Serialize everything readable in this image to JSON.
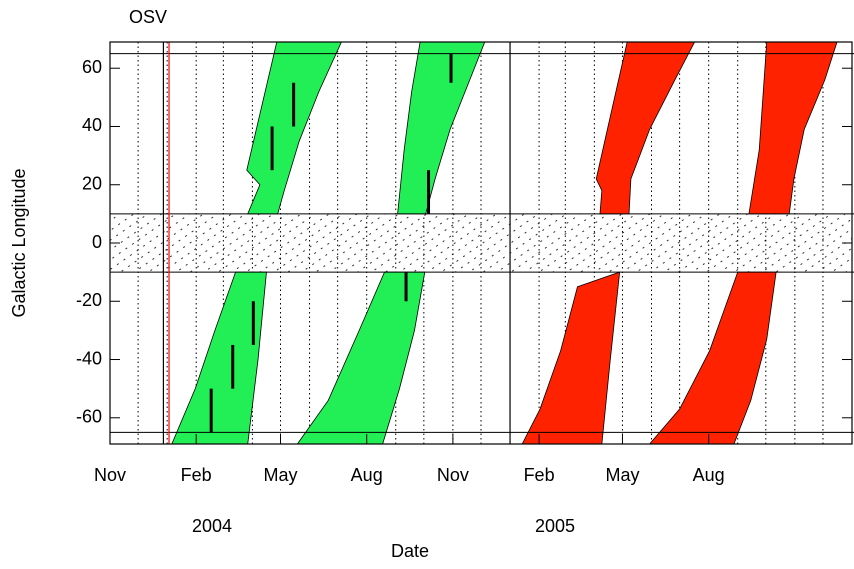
{
  "chart_data": {
    "type": "polygon",
    "title": "OSV",
    "y_label": "Galactic Longitude",
    "x_label": "Date",
    "year_labels": [
      "2004",
      "2005"
    ],
    "xlim": [
      "2003-11-01",
      "2006-01-01"
    ],
    "xticks": [
      {
        "value": "2003-11-01",
        "label": "Nov"
      },
      {
        "value": "2004-02-01",
        "label": "Feb"
      },
      {
        "value": "2004-05-01",
        "label": "May"
      },
      {
        "value": "2004-08-01",
        "label": "Aug"
      },
      {
        "value": "2004-11-01",
        "label": "Nov"
      },
      {
        "value": "2005-02-01",
        "label": "Feb"
      },
      {
        "value": "2005-05-01",
        "label": "May"
      },
      {
        "value": "2005-08-01",
        "label": "Aug"
      }
    ],
    "xgrid": [
      "2003-12-01",
      "2004-01-01",
      "2004-02-01",
      "2004-03-01",
      "2004-04-01",
      "2004-05-01",
      "2004-06-01",
      "2004-07-01",
      "2004-08-01",
      "2004-09-01",
      "2004-10-01",
      "2004-11-01",
      "2004-12-01",
      "2005-02-01",
      "2005-03-01",
      "2005-04-01",
      "2005-05-01",
      "2005-06-01",
      "2005-07-01",
      "2005-08-01",
      "2005-09-01",
      "2005-10-01",
      "2005-11-01",
      "2005-12-01"
    ],
    "ylim": [
      -69,
      69
    ],
    "yticks": [
      -60,
      -40,
      -20,
      0,
      20,
      40,
      60
    ],
    "hlines": [
      65,
      -65
    ],
    "band": [
      -10,
      10
    ],
    "vlines": [
      {
        "x": "2003-12-28",
        "color": "#000000"
      },
      {
        "x": "2004-01-03",
        "color": "#ff0000"
      },
      {
        "x": "2005-01-01",
        "color": "#000000"
      }
    ],
    "polygons": [
      {
        "color": "#22ee55",
        "x": [
          "2004-04-27",
          "2004-07-05",
          "2004-06-11",
          "2004-05-21",
          "2004-05-05",
          "2004-04-28",
          "2004-03-27",
          "2004-04-09",
          "2004-03-26"
        ],
        "values": [
          69,
          69,
          52,
          35,
          18,
          10,
          10,
          20,
          25
        ]
      },
      {
        "color": "#22ee55",
        "x": [
          "2004-09-27",
          "2004-12-05",
          "2004-11-19",
          "2004-10-29",
          "2004-10-13",
          "2004-10-03",
          "2004-09-03",
          "2004-09-10",
          "2004-09-18"
        ],
        "values": [
          69,
          69,
          56,
          39,
          22,
          10,
          10,
          32,
          52
        ]
      },
      {
        "color": "#ff2200",
        "x": [
          "2005-05-06",
          "2005-07-17",
          "2005-06-26",
          "2005-05-30",
          "2005-05-10",
          "2005-05-08",
          "2005-04-07",
          "2005-04-09",
          "2005-04-03",
          "2005-04-17"
        ],
        "values": [
          69,
          69,
          56,
          39,
          22,
          10,
          10,
          18,
          22,
          42
        ]
      },
      {
        "color": "#ff2200",
        "x": [
          "2005-10-02",
          "2005-12-16",
          "2005-12-03",
          "2005-11-11",
          "2005-10-31",
          "2005-10-26",
          "2005-09-13",
          "2005-09-24"
        ],
        "values": [
          69,
          69,
          56,
          39,
          22,
          10,
          10,
          32
        ]
      },
      {
        "color": "#22ee55",
        "x": [
          "2004-03-14",
          "2004-04-16",
          "2004-04-07",
          "2004-03-27",
          "2004-01-06",
          "2004-01-31",
          "2004-02-21"
        ],
        "values": [
          -10,
          -10,
          -40,
          -69,
          -69,
          -50,
          -30
        ]
      },
      {
        "color": "#22ee55",
        "x": [
          "2004-08-20",
          "2004-10-02",
          "2004-09-21",
          "2004-09-05",
          "2004-08-18",
          "2004-05-19",
          "2004-06-21",
          "2004-07-24"
        ],
        "values": [
          -10,
          -10,
          -30,
          -50,
          -69,
          -69,
          -54,
          -30
        ]
      },
      {
        "color": "#ff2200",
        "x": [
          "2005-03-14",
          "2005-04-28",
          "2005-04-18",
          "2005-04-09",
          "2005-01-14",
          "2005-02-02",
          "2005-02-24"
        ],
        "values": [
          -15,
          -10,
          -40,
          -69,
          -69,
          -57,
          -37
        ]
      },
      {
        "color": "#ff2200",
        "x": [
          "2005-09-01",
          "2005-10-12",
          "2005-10-02",
          "2005-09-15",
          "2005-08-28",
          "2005-05-30",
          "2005-07-01",
          "2005-08-02"
        ],
        "values": [
          -10,
          -10,
          -33,
          -54,
          -69,
          -69,
          -57,
          -37
        ]
      }
    ],
    "segments": [
      {
        "x": "2004-04-22",
        "values": [
          40,
          25
        ]
      },
      {
        "x": "2004-05-15",
        "values": [
          55,
          40
        ]
      },
      {
        "x": "2004-10-06",
        "values": [
          25,
          10
        ]
      },
      {
        "x": "2004-10-30",
        "values": [
          65,
          55
        ]
      },
      {
        "x": "2004-02-17",
        "values": [
          -50,
          -65
        ]
      },
      {
        "x": "2004-03-11",
        "values": [
          -35,
          -50
        ]
      },
      {
        "x": "2004-04-02",
        "values": [
          -20,
          -35
        ]
      },
      {
        "x": "2004-09-12",
        "values": [
          -10,
          -20
        ]
      }
    ],
    "segment_color": "#000000"
  }
}
